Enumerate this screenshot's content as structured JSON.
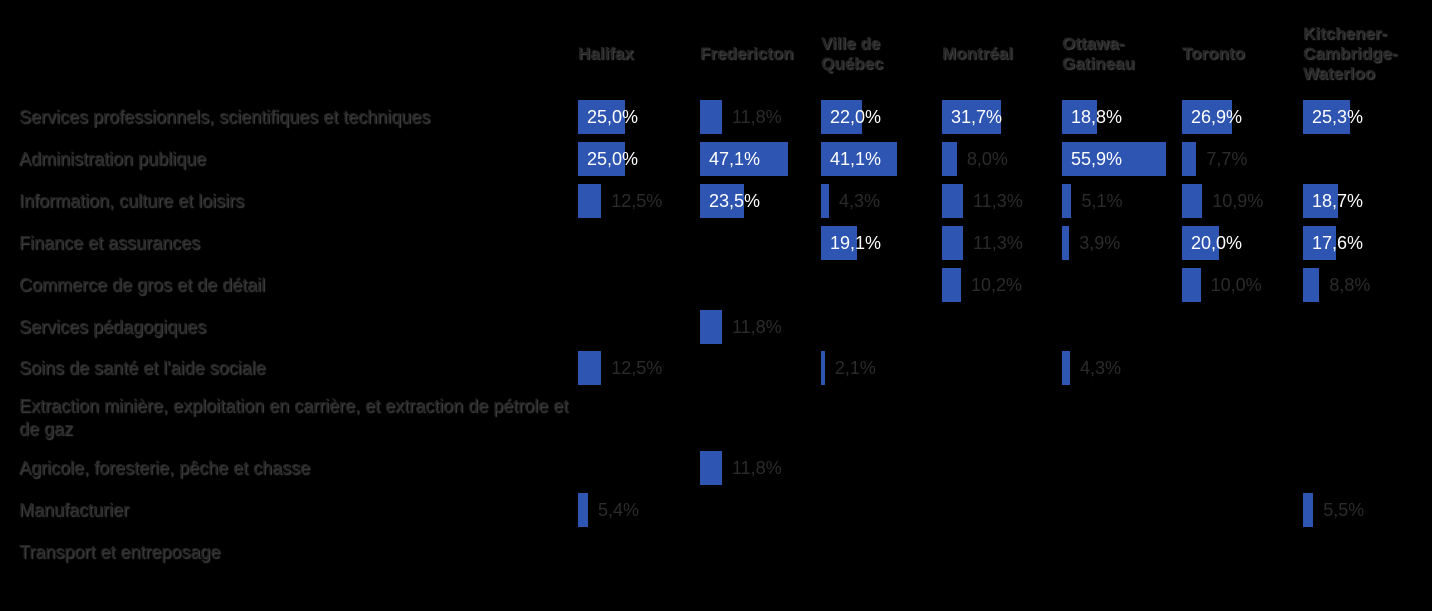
{
  "chart_data": {
    "type": "table",
    "title": "",
    "columns": [
      "Halifax",
      "Fredericton",
      "Ville de\nQuébec",
      "Montréal",
      "Ottawa-\nGatineau",
      "Toronto",
      "Kitchener-\nCambridge-\nWaterloo"
    ],
    "rows": [
      "Services professionnels, scientifiques et techniques",
      "Administration publique",
      "Information, culture et loisirs",
      "Finance et assurances",
      "Commerce de gros et de détail",
      "Services pédagogiques",
      "Soins de santé et l'aide sociale",
      "Extraction minière, exploitation en carrière, et extraction de pétrole et de gaz",
      "Agricole, foresterie, pêche et chasse",
      "Manufacturier",
      "Transport et entreposage"
    ],
    "values": [
      [
        25.0,
        11.8,
        22.0,
        31.7,
        18.8,
        26.9,
        25.3
      ],
      [
        25.0,
        47.1,
        41.1,
        8.0,
        55.9,
        7.7,
        null
      ],
      [
        12.5,
        23.5,
        4.3,
        11.3,
        5.1,
        10.9,
        18.7
      ],
      [
        null,
        null,
        19.1,
        11.3,
        3.9,
        20.0,
        17.6
      ],
      [
        null,
        null,
        null,
        10.2,
        null,
        10.0,
        8.8
      ],
      [
        null,
        11.8,
        null,
        null,
        null,
        null,
        null
      ],
      [
        12.5,
        null,
        2.1,
        null,
        4.3,
        null,
        null
      ],
      [
        null,
        null,
        null,
        null,
        null,
        null,
        null
      ],
      [
        null,
        11.8,
        null,
        null,
        null,
        null,
        null
      ],
      [
        5.4,
        null,
        null,
        null,
        null,
        null,
        5.5
      ],
      [
        null,
        null,
        null,
        null,
        null,
        null,
        null
      ]
    ],
    "labels": [
      [
        "25,0%",
        "11,8%",
        "22,0%",
        "31,7%",
        "18,8%",
        "26,9%",
        "25,3%"
      ],
      [
        "25,0%",
        "47,1%",
        "41,1%",
        "8,0%",
        "55,9%",
        "7,7%",
        ""
      ],
      [
        "12,5%",
        "23,5%",
        "4,3%",
        "11,3%",
        "5,1%",
        "10,9%",
        "18,7%"
      ],
      [
        "",
        "",
        "19,1%",
        "11,3%",
        "3,9%",
        "20,0%",
        "17,6%"
      ],
      [
        "",
        "",
        "",
        "10,2%",
        "",
        "10,0%",
        "8,8%"
      ],
      [
        "",
        "11,8%",
        "",
        "",
        "",
        "",
        ""
      ],
      [
        "12,5%",
        "",
        "2,1%",
        "",
        "4,3%",
        "",
        ""
      ],
      [
        "",
        "",
        "",
        "",
        "",
        "",
        ""
      ],
      [
        "",
        "11,8%",
        "",
        "",
        "",
        "",
        ""
      ],
      [
        "5,4%",
        "",
        "",
        "",
        "",
        "",
        "5,5%"
      ],
      [
        "",
        "",
        "",
        "",
        "",
        "",
        ""
      ]
    ],
    "value_max": 55.9,
    "bar_color": "#2e55b2",
    "label_inside_color": "#ffffff",
    "label_outside_color": "#2b2b2b",
    "header_color": "#262626",
    "row_label_color": "#262626"
  }
}
